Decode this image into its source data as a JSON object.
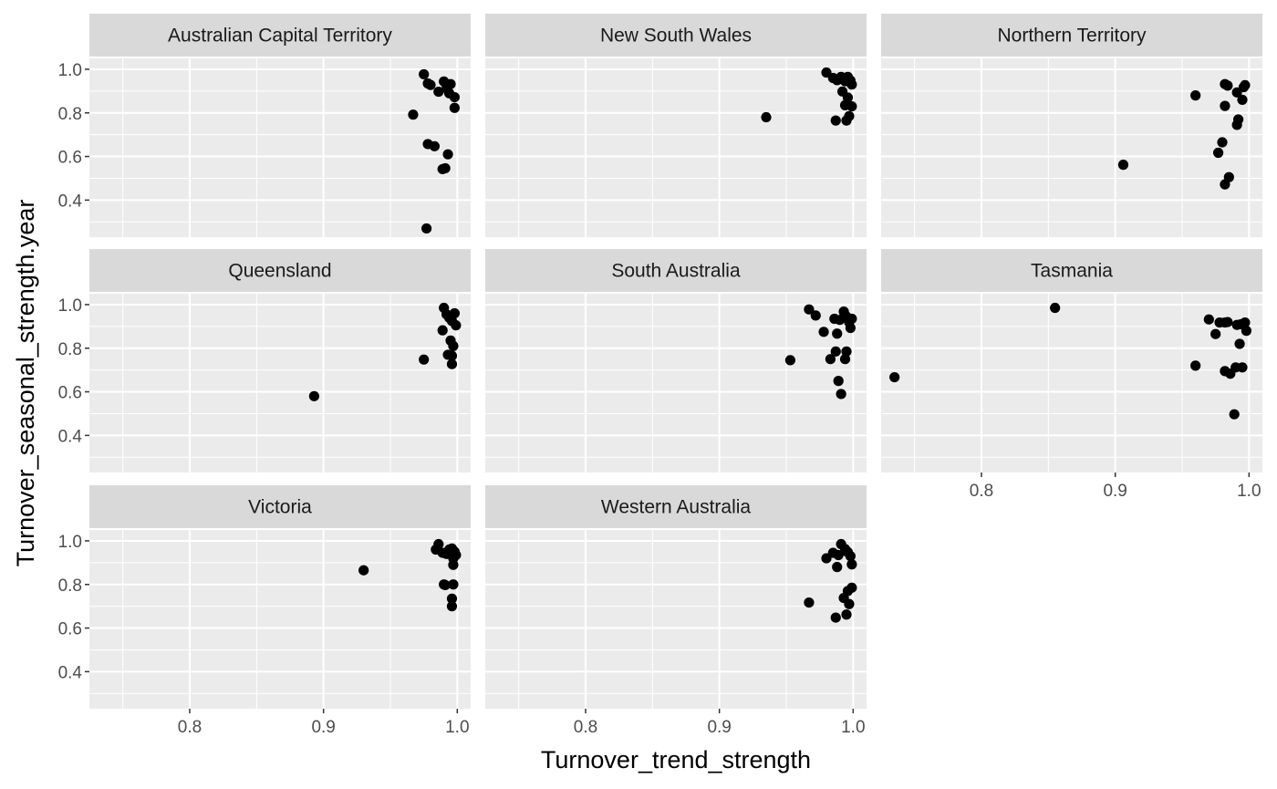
{
  "chart_data": {
    "type": "scatter",
    "facet_layout": "wrap 3 columns",
    "xlabel": "Turnover_trend_strength",
    "ylabel": "Turnover_seasonal_strength.year",
    "xlim": [
      0.725,
      1.01
    ],
    "ylim": [
      0.23,
      1.05
    ],
    "x_ticks": [
      {
        "v": 0.8,
        "label": "0.8"
      },
      {
        "v": 0.9,
        "label": "0.9"
      },
      {
        "v": 1.0,
        "label": "1.0"
      }
    ],
    "y_ticks": [
      {
        "v": 0.4,
        "label": "0.4"
      },
      {
        "v": 0.6,
        "label": "0.6"
      },
      {
        "v": 0.8,
        "label": "0.8"
      },
      {
        "v": 1.0,
        "label": "1.0"
      }
    ],
    "grid": true,
    "colors": {
      "panel_bg": "#ebebeb",
      "strip_bg": "#d9d9d9",
      "grid": "#ffffff",
      "point": "#000000"
    },
    "panels": [
      {
        "name": "Australian Capital Territory",
        "points": [
          [
            0.975,
            0.977
          ],
          [
            0.978,
            0.935
          ],
          [
            0.98,
            0.928
          ],
          [
            0.986,
            0.897
          ],
          [
            0.99,
            0.944
          ],
          [
            0.992,
            0.912
          ],
          [
            0.994,
            0.89
          ],
          [
            0.995,
            0.932
          ],
          [
            0.998,
            0.872
          ],
          [
            0.998,
            0.823
          ],
          [
            0.967,
            0.792
          ],
          [
            0.978,
            0.657
          ],
          [
            0.983,
            0.647
          ],
          [
            0.993,
            0.61
          ],
          [
            0.989,
            0.542
          ],
          [
            0.991,
            0.546
          ],
          [
            0.977,
            0.27
          ]
        ]
      },
      {
        "name": "New South Wales",
        "points": [
          [
            0.935,
            0.78
          ],
          [
            0.98,
            0.985
          ],
          [
            0.985,
            0.96
          ],
          [
            0.988,
            0.95
          ],
          [
            0.991,
            0.965
          ],
          [
            0.994,
            0.945
          ],
          [
            0.996,
            0.965
          ],
          [
            0.998,
            0.948
          ],
          [
            0.999,
            0.93
          ],
          [
            0.992,
            0.898
          ],
          [
            0.996,
            0.87
          ],
          [
            0.994,
            0.835
          ],
          [
            0.999,
            0.83
          ],
          [
            0.997,
            0.785
          ],
          [
            0.995,
            0.765
          ],
          [
            0.987,
            0.765
          ]
        ]
      },
      {
        "name": "Northern Territory",
        "points": [
          [
            0.906,
            0.562
          ],
          [
            0.96,
            0.88
          ],
          [
            0.982,
            0.932
          ],
          [
            0.984,
            0.925
          ],
          [
            0.997,
            0.927
          ],
          [
            0.996,
            0.918
          ],
          [
            0.982,
            0.832
          ],
          [
            0.991,
            0.894
          ],
          [
            0.995,
            0.86
          ],
          [
            0.992,
            0.77
          ],
          [
            0.991,
            0.745
          ],
          [
            0.98,
            0.665
          ],
          [
            0.977,
            0.617
          ],
          [
            0.985,
            0.505
          ],
          [
            0.982,
            0.472
          ]
        ]
      },
      {
        "name": "Queensland",
        "points": [
          [
            0.893,
            0.58
          ],
          [
            0.975,
            0.748
          ],
          [
            0.99,
            0.985
          ],
          [
            0.992,
            0.955
          ],
          [
            0.994,
            0.94
          ],
          [
            0.996,
            0.925
          ],
          [
            0.998,
            0.96
          ],
          [
            0.999,
            0.905
          ],
          [
            0.989,
            0.882
          ],
          [
            0.995,
            0.835
          ],
          [
            0.997,
            0.81
          ],
          [
            0.993,
            0.77
          ],
          [
            0.996,
            0.765
          ],
          [
            0.996,
            0.727
          ]
        ]
      },
      {
        "name": "South Australia",
        "points": [
          [
            0.953,
            0.745
          ],
          [
            0.967,
            0.978
          ],
          [
            0.972,
            0.95
          ],
          [
            0.978,
            0.875
          ],
          [
            0.986,
            0.935
          ],
          [
            0.99,
            0.93
          ],
          [
            0.993,
            0.968
          ],
          [
            0.995,
            0.945
          ],
          [
            0.997,
            0.92
          ],
          [
            0.999,
            0.935
          ],
          [
            0.998,
            0.893
          ],
          [
            0.988,
            0.867
          ],
          [
            0.987,
            0.785
          ],
          [
            0.995,
            0.785
          ],
          [
            0.983,
            0.75
          ],
          [
            0.994,
            0.75
          ],
          [
            0.989,
            0.65
          ],
          [
            0.991,
            0.59
          ]
        ]
      },
      {
        "name": "Tasmania",
        "points": [
          [
            0.735,
            0.667
          ],
          [
            0.855,
            0.985
          ],
          [
            0.97,
            0.932
          ],
          [
            0.975,
            0.865
          ],
          [
            0.978,
            0.918
          ],
          [
            0.982,
            0.918
          ],
          [
            0.984,
            0.92
          ],
          [
            0.991,
            0.907
          ],
          [
            0.994,
            0.91
          ],
          [
            0.997,
            0.918
          ],
          [
            0.998,
            0.88
          ],
          [
            0.993,
            0.82
          ],
          [
            0.96,
            0.72
          ],
          [
            0.982,
            0.695
          ],
          [
            0.986,
            0.683
          ],
          [
            0.99,
            0.712
          ],
          [
            0.995,
            0.712
          ],
          [
            0.989,
            0.497
          ]
        ]
      },
      {
        "name": "Victoria",
        "points": [
          [
            0.93,
            0.865
          ],
          [
            0.984,
            0.96
          ],
          [
            0.986,
            0.985
          ],
          [
            0.989,
            0.945
          ],
          [
            0.992,
            0.94
          ],
          [
            0.994,
            0.96
          ],
          [
            0.996,
            0.965
          ],
          [
            0.998,
            0.95
          ],
          [
            0.999,
            0.935
          ],
          [
            0.997,
            0.92
          ],
          [
            0.997,
            0.89
          ],
          [
            0.99,
            0.8
          ],
          [
            0.991,
            0.797
          ],
          [
            0.997,
            0.8
          ],
          [
            0.996,
            0.735
          ],
          [
            0.996,
            0.7
          ]
        ]
      },
      {
        "name": "Western Australia",
        "points": [
          [
            0.967,
            0.717
          ],
          [
            0.98,
            0.92
          ],
          [
            0.985,
            0.945
          ],
          [
            0.989,
            0.935
          ],
          [
            0.991,
            0.985
          ],
          [
            0.994,
            0.962
          ],
          [
            0.996,
            0.948
          ],
          [
            0.998,
            0.93
          ],
          [
            0.999,
            0.892
          ],
          [
            0.988,
            0.88
          ],
          [
            0.996,
            0.77
          ],
          [
            0.999,
            0.785
          ],
          [
            0.993,
            0.738
          ],
          [
            0.997,
            0.71
          ],
          [
            0.995,
            0.662
          ],
          [
            0.987,
            0.648
          ]
        ]
      }
    ]
  }
}
